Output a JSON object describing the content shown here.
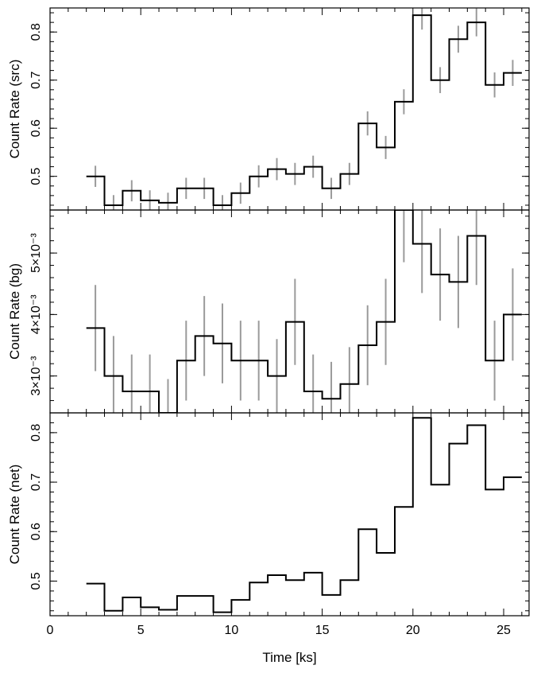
{
  "chart_data": {
    "type": "line",
    "style": "step-histogram-with-error-bars",
    "xlabel": "Time [ks]",
    "xlim": [
      0,
      26.4
    ],
    "x_ticks": [
      0,
      5,
      10,
      15,
      20,
      25
    ],
    "x_tick_labels": [
      "0",
      "5",
      "10",
      "15",
      "20",
      "25"
    ],
    "bin_centers": [
      2.5,
      3.5,
      4.5,
      5.5,
      6.5,
      7.5,
      8.5,
      9.5,
      10.5,
      11.5,
      12.5,
      13.5,
      14.5,
      15.5,
      16.5,
      17.5,
      18.5,
      19.5,
      20.5,
      21.5,
      22.5,
      23.5,
      24.5,
      25.5
    ],
    "bin_edges": [
      2,
      3,
      4,
      5,
      6,
      7,
      8,
      9,
      10,
      11,
      12,
      13,
      14,
      15,
      16,
      17,
      18,
      19,
      20,
      21,
      22,
      23,
      24,
      25,
      26
    ],
    "panels": [
      {
        "ylabel": "Count Rate (src)",
        "ylim": [
          0.43,
          0.85
        ],
        "y_ticks": [
          0.5,
          0.6,
          0.7,
          0.8
        ],
        "y_tick_labels": [
          "0.5",
          "0.6",
          "0.7",
          "0.8"
        ],
        "values": [
          0.5,
          0.44,
          0.47,
          0.45,
          0.445,
          0.475,
          0.475,
          0.44,
          0.465,
          0.5,
          0.515,
          0.505,
          0.52,
          0.475,
          0.505,
          0.61,
          0.56,
          0.655,
          0.835,
          0.7,
          0.785,
          0.82,
          0.69,
          0.715
        ],
        "errors": [
          0.022,
          0.021,
          0.022,
          0.021,
          0.021,
          0.022,
          0.022,
          0.021,
          0.022,
          0.023,
          0.023,
          0.023,
          0.023,
          0.022,
          0.023,
          0.025,
          0.024,
          0.026,
          0.03,
          0.027,
          0.028,
          0.029,
          0.026,
          0.027
        ]
      },
      {
        "ylabel": "Count Rate (bg)",
        "ylim": [
          0.0024,
          0.0057
        ],
        "y_ticks": [
          0.003,
          0.004,
          0.005
        ],
        "y_tick_labels": [
          "3×10⁻³",
          "4×10⁻³",
          "5×10⁻³"
        ],
        "values": [
          0.00378,
          0.003,
          0.00275,
          0.00275,
          0.0024,
          0.00325,
          0.00365,
          0.00353,
          0.00325,
          0.00325,
          0.003,
          0.00388,
          0.00275,
          0.00263,
          0.00287,
          0.0035,
          0.00388,
          0.0057,
          0.00515,
          0.00465,
          0.00453,
          0.00528,
          0.00325,
          0.004
        ],
        "errors": [
          0.0007,
          0.00065,
          0.0006,
          0.0006,
          0.00055,
          0.00065,
          0.00065,
          0.00065,
          0.00065,
          0.00065,
          0.0006,
          0.0007,
          0.0006,
          0.0006,
          0.0006,
          0.00065,
          0.0007,
          0.00085,
          0.0008,
          0.00075,
          0.00075,
          0.0008,
          0.00065,
          0.00075
        ]
      },
      {
        "ylabel": "Count Rate (net)",
        "ylim": [
          0.43,
          0.84
        ],
        "y_ticks": [
          0.5,
          0.6,
          0.7,
          0.8
        ],
        "y_tick_labels": [
          "0.5",
          "0.6",
          "0.7",
          "0.8"
        ],
        "values": [
          0.495,
          0.44,
          0.467,
          0.447,
          0.442,
          0.47,
          0.47,
          0.437,
          0.462,
          0.497,
          0.512,
          0.502,
          0.517,
          0.472,
          0.502,
          0.605,
          0.557,
          0.65,
          0.83,
          0.695,
          0.778,
          0.815,
          0.685,
          0.71
        ]
      }
    ]
  }
}
